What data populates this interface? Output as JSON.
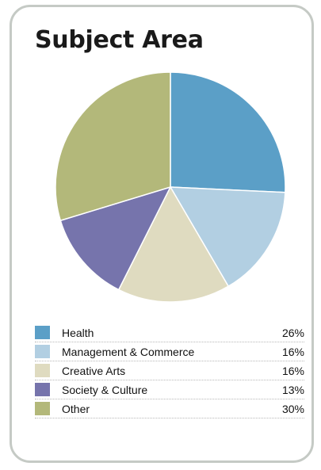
{
  "chart_data": {
    "type": "pie",
    "title": "Subject Area",
    "slices": [
      {
        "label": "Health",
        "value": 26,
        "value_label": "26%",
        "color": "#5b9fc7"
      },
      {
        "label": "Management & Commerce",
        "value": 16,
        "value_label": "16%",
        "color": "#b2cfe2"
      },
      {
        "label": "Creative Arts",
        "value": 16,
        "value_label": "16%",
        "color": "#dfdbc0"
      },
      {
        "label": "Society & Culture",
        "value": 13,
        "value_label": "13%",
        "color": "#7674ac"
      },
      {
        "label": "Other",
        "value": 30,
        "value_label": "30%",
        "color": "#b3b87a"
      }
    ],
    "legend_placement": "bottom"
  },
  "colors": {
    "card_border": "#c5cac5",
    "text": "#111111"
  }
}
